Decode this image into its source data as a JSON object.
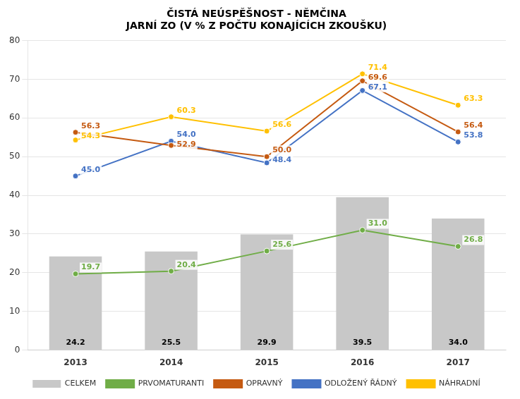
{
  "chart_data": {
    "type": "bar",
    "title": "ČISTÁ NEÚSPĚŠNOST - NĚMČINA\nJARNÍ ZO (V % Z POČTU KONAJÍCÍCH ZKOUŠKU)",
    "categories": [
      "2013",
      "2014",
      "2015",
      "2016",
      "2017"
    ],
    "series": [
      {
        "name": "CELKEM",
        "type": "bar",
        "color": "#c8c8c8",
        "values": [
          24.2,
          25.5,
          29.9,
          39.5,
          34.0
        ],
        "value_labels": [
          "24.2",
          "25.5",
          "29.9",
          "39.5",
          "34.0"
        ]
      },
      {
        "name": "PRVOMATURANTI",
        "type": "line",
        "color": "#70ad47",
        "marker": "circle",
        "line_style": "solid",
        "values": [
          19.7,
          20.4,
          25.6,
          31.0,
          26.8
        ],
        "value_labels": [
          "19.7",
          "20.4",
          "25.6",
          "31.0",
          "26.8"
        ]
      },
      {
        "name": "OPRAVNÝ",
        "type": "line",
        "color": "#c55a11",
        "marker": "circle",
        "line_style": "solid",
        "values": [
          56.3,
          52.9,
          50.0,
          69.6,
          56.4
        ],
        "value_labels": [
          "56.3",
          "52.9",
          "50.0",
          "69.6",
          "56.4"
        ]
      },
      {
        "name": "ODLOŽENÝ ŘÁDNÝ",
        "type": "line",
        "color": "#4472c4",
        "marker": "circle",
        "line_style": "solid",
        "values": [
          45.0,
          54.0,
          48.4,
          67.1,
          53.8
        ],
        "value_labels": [
          "45.0",
          "54.0",
          "48.4",
          "67.1",
          "53.8"
        ]
      },
      {
        "name": "NÁHRADNÍ",
        "type": "line",
        "color": "#ffc000",
        "marker": "circle",
        "line_style": "solid",
        "values": [
          54.3,
          60.3,
          56.6,
          71.4,
          63.3
        ],
        "value_labels": [
          "54.3",
          "60.3",
          "56.6",
          "71.4",
          "63.3"
        ]
      }
    ],
    "ylim": [
      0,
      80
    ],
    "yticks": [
      0,
      10,
      20,
      30,
      40,
      50,
      60,
      70,
      80
    ],
    "grid": true,
    "legend": "bottom",
    "data_labels": true
  }
}
